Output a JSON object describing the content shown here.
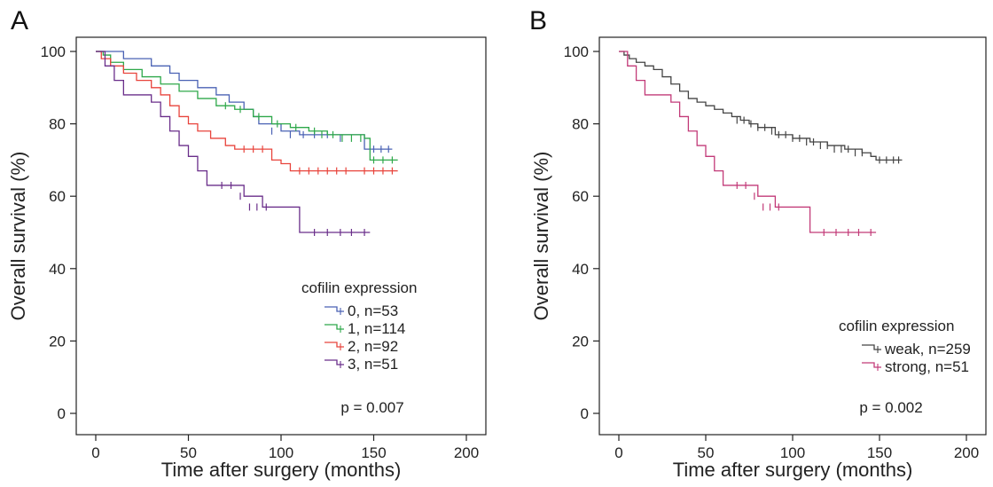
{
  "chart_data": [
    {
      "type": "line",
      "subtype": "kaplan-meier",
      "panel_label": "A",
      "xlabel": "Time after surgery (months)",
      "ylabel": "Overall survival (%)",
      "xlim": [
        0,
        200
      ],
      "ylim": [
        0,
        100
      ],
      "xticks": [
        0,
        50,
        100,
        150,
        200
      ],
      "yticks": [
        0,
        20,
        40,
        60,
        80,
        100
      ],
      "grid": false,
      "legend_position": "bottom-right",
      "legend_title": "cofilin expression",
      "p_value_text": "p = 0.007",
      "series": [
        {
          "name": "0, n=53",
          "color": "#4a62b4",
          "x": [
            0,
            5,
            15,
            30,
            40,
            45,
            55,
            65,
            72,
            80,
            85,
            88,
            100,
            110,
            145,
            160
          ],
          "y": [
            100,
            100,
            98,
            96,
            94,
            92,
            90,
            88,
            86,
            84,
            82,
            80,
            78,
            77,
            73,
            73
          ],
          "censored": [
            [
              95,
              78
            ],
            [
              105,
              77
            ],
            [
              112,
              77
            ],
            [
              118,
              77
            ],
            [
              125,
              77
            ],
            [
              132,
              76
            ],
            [
              150,
              73
            ],
            [
              154,
              73
            ],
            [
              158,
              73
            ]
          ]
        },
        {
          "name": "1, n=114",
          "color": "#2ea84a",
          "x": [
            0,
            4,
            8,
            15,
            25,
            35,
            45,
            55,
            65,
            75,
            85,
            95,
            105,
            115,
            125,
            145,
            148,
            163
          ],
          "y": [
            100,
            99,
            97,
            95,
            93,
            91,
            89,
            87,
            85,
            84,
            82,
            80,
            79,
            78,
            77,
            76,
            70,
            70
          ],
          "censored": [
            [
              70,
              85
            ],
            [
              78,
              84
            ],
            [
              88,
              82
            ],
            [
              98,
              80
            ],
            [
              108,
              79
            ],
            [
              118,
              78
            ],
            [
              122,
              77
            ],
            [
              128,
              77
            ],
            [
              133,
              76
            ],
            [
              138,
              76
            ],
            [
              143,
              76
            ],
            [
              150,
              70
            ],
            [
              155,
              70
            ],
            [
              160,
              70
            ]
          ]
        },
        {
          "name": "2, n=92",
          "color": "#e8443c",
          "x": [
            0,
            3,
            8,
            15,
            22,
            30,
            35,
            40,
            45,
            50,
            55,
            62,
            70,
            75,
            95,
            100,
            105,
            163
          ],
          "y": [
            100,
            98,
            96,
            94,
            92,
            90,
            88,
            85,
            82,
            80,
            78,
            76,
            74,
            73,
            70,
            69,
            67,
            67
          ],
          "censored": [
            [
              80,
              73
            ],
            [
              85,
              73
            ],
            [
              90,
              73
            ],
            [
              110,
              67
            ],
            [
              115,
              67
            ],
            [
              120,
              67
            ],
            [
              125,
              67
            ],
            [
              130,
              67
            ],
            [
              135,
              67
            ],
            [
              145,
              67
            ],
            [
              150,
              67
            ],
            [
              155,
              67
            ],
            [
              160,
              67
            ]
          ]
        },
        {
          "name": "3, n=51",
          "color": "#6a2e8a",
          "x": [
            0,
            5,
            10,
            15,
            30,
            35,
            40,
            45,
            50,
            55,
            60,
            70,
            80,
            90,
            100,
            110,
            148
          ],
          "y": [
            100,
            96,
            92,
            88,
            86,
            82,
            78,
            74,
            71,
            67,
            63,
            63,
            60,
            57,
            57,
            50,
            50
          ],
          "censored": [
            [
              68,
              63
            ],
            [
              73,
              63
            ],
            [
              78,
              60
            ],
            [
              83,
              57
            ],
            [
              87,
              57
            ],
            [
              92,
              57
            ],
            [
              118,
              50
            ],
            [
              125,
              50
            ],
            [
              132,
              50
            ],
            [
              138,
              50
            ],
            [
              145,
              50
            ]
          ]
        }
      ]
    },
    {
      "type": "line",
      "subtype": "kaplan-meier",
      "panel_label": "B",
      "xlabel": "Time after surgery (months)",
      "ylabel": "Overall survival (%)",
      "xlim": [
        0,
        200
      ],
      "ylim": [
        0,
        100
      ],
      "xticks": [
        0,
        50,
        100,
        150,
        200
      ],
      "yticks": [
        0,
        20,
        40,
        60,
        80,
        100
      ],
      "grid": false,
      "legend_position": "bottom-right",
      "legend_title": "cofilin expression",
      "p_value_text": "p = 0.002",
      "series": [
        {
          "name": "weak, n=259",
          "color": "#444444",
          "x": [
            0,
            3,
            6,
            10,
            15,
            20,
            25,
            30,
            35,
            40,
            45,
            50,
            55,
            60,
            65,
            70,
            75,
            80,
            90,
            100,
            110,
            120,
            130,
            140,
            145,
            148,
            163
          ],
          "y": [
            100,
            99,
            98,
            97,
            96,
            95,
            93,
            91,
            89,
            87,
            86,
            85,
            84,
            83,
            82,
            81,
            80,
            79,
            77,
            76,
            75,
            74,
            73,
            72,
            71,
            70,
            70
          ],
          "censored": [
            [
              68,
              81
            ],
            [
              72,
              81
            ],
            [
              76,
              80
            ],
            [
              80,
              79
            ],
            [
              84,
              79
            ],
            [
              88,
              78
            ],
            [
              92,
              77
            ],
            [
              96,
              77
            ],
            [
              100,
              76
            ],
            [
              104,
              76
            ],
            [
              108,
              75
            ],
            [
              112,
              75
            ],
            [
              116,
              74
            ],
            [
              120,
              74
            ],
            [
              124,
              73
            ],
            [
              128,
              73
            ],
            [
              132,
              73
            ],
            [
              136,
              72
            ],
            [
              140,
              72
            ],
            [
              150,
              70
            ],
            [
              154,
              70
            ],
            [
              158,
              70
            ],
            [
              161,
              70
            ]
          ]
        },
        {
          "name": "strong, n=51",
          "color": "#c23a78",
          "x": [
            0,
            5,
            10,
            15,
            30,
            35,
            40,
            45,
            50,
            55,
            60,
            70,
            80,
            90,
            100,
            110,
            148
          ],
          "y": [
            100,
            96,
            92,
            88,
            86,
            82,
            78,
            74,
            71,
            67,
            63,
            63,
            60,
            57,
            57,
            50,
            50
          ],
          "censored": [
            [
              68,
              63
            ],
            [
              73,
              63
            ],
            [
              78,
              60
            ],
            [
              83,
              57
            ],
            [
              87,
              57
            ],
            [
              92,
              57
            ],
            [
              118,
              50
            ],
            [
              125,
              50
            ],
            [
              132,
              50
            ],
            [
              138,
              50
            ],
            [
              145,
              50
            ]
          ]
        }
      ]
    }
  ]
}
